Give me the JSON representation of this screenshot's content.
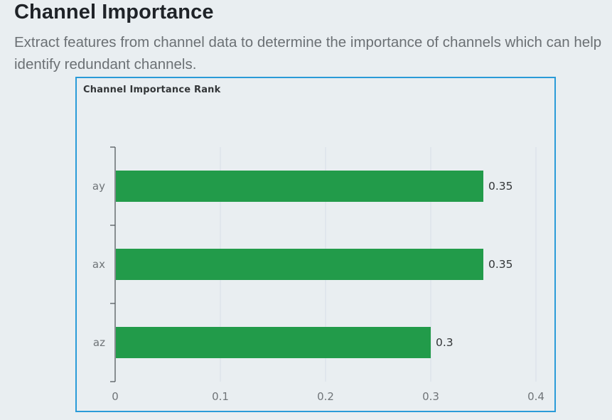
{
  "header": {
    "title": "Channel Importance",
    "description": "Extract features from channel data to determine the importance of channels which can help identify redundant channels."
  },
  "colors": {
    "bar": "#229b4a",
    "panel_border": "#2a9bd8",
    "grid": "#d6dee6",
    "axis": "#555a5e"
  },
  "chart_data": {
    "type": "bar",
    "orientation": "horizontal",
    "title": "Channel Importance Rank",
    "categories": [
      "ay",
      "ax",
      "az"
    ],
    "values": [
      0.35,
      0.35,
      0.3
    ],
    "data_labels": [
      "0.35",
      "0.35",
      "0.3"
    ],
    "xlim": [
      0,
      0.4
    ],
    "xticks": [
      0,
      0.1,
      0.2,
      0.3,
      0.4
    ],
    "xtick_labels": [
      "0",
      "0.1",
      "0.2",
      "0.3",
      "0.4"
    ],
    "xlabel": "",
    "ylabel": "",
    "grid": "vertical",
    "legend": "none"
  }
}
